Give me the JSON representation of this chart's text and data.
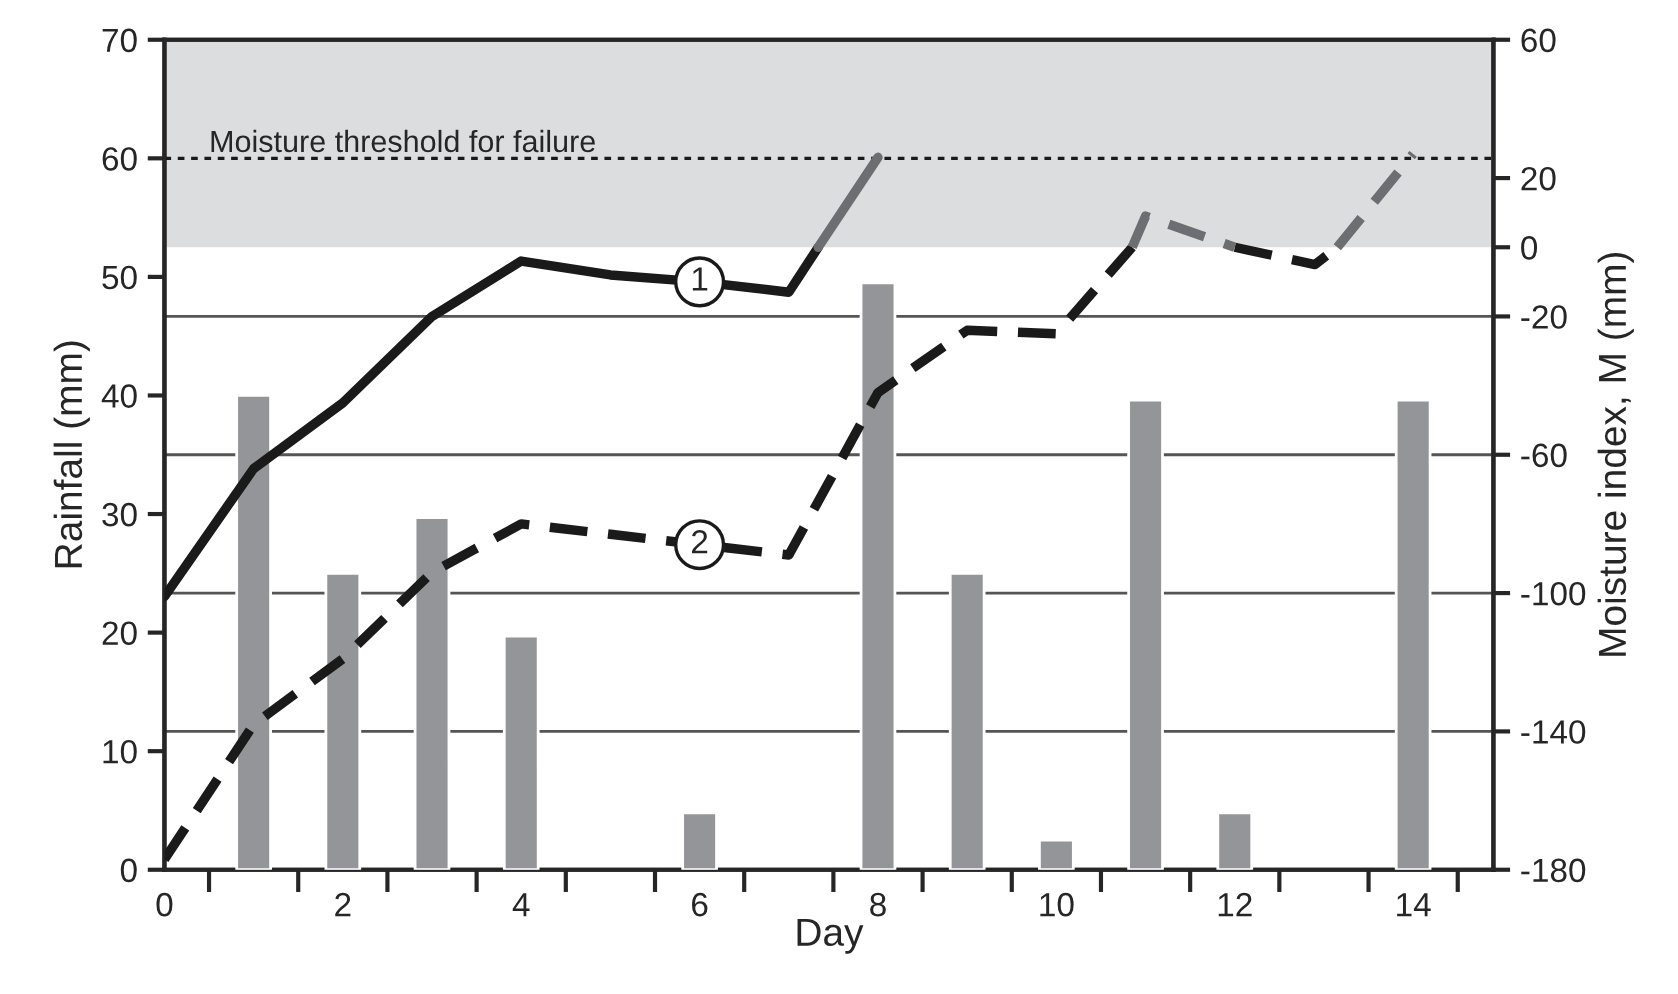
{
  "chart_data": {
    "type": "bar",
    "xlabel": "Day",
    "ylabel": "Rainfall (mm)",
    "y2label": "Moisture index, M (mm)",
    "x": [
      1,
      2,
      3,
      4,
      6,
      8,
      9,
      10,
      11,
      12,
      14
    ],
    "xlim": [
      0,
      14.9
    ],
    "xticks": [
      0,
      {
        "value": 0.5,
        "label": null
      },
      {
        "value": 1.5,
        "label": null
      },
      2,
      {
        "value": 2.5,
        "label": null
      },
      {
        "value": 3.5,
        "label": null
      },
      4,
      {
        "value": 4.5,
        "label": null
      },
      {
        "value": 5.5,
        "label": null
      },
      6,
      {
        "value": 6.5,
        "label": null
      },
      {
        "value": 7.5,
        "label": null
      },
      8,
      {
        "value": 8.5,
        "label": null
      },
      {
        "value": 9.5,
        "label": null
      },
      10,
      {
        "value": 10.5,
        "label": null
      },
      {
        "value": 11.5,
        "label": null
      },
      12,
      {
        "value": 12.5,
        "label": null
      },
      {
        "value": 13.5,
        "label": null
      },
      14,
      {
        "value": 14.5,
        "label": null
      }
    ],
    "ylim": [
      0,
      70
    ],
    "yticks": [
      0,
      10,
      20,
      30,
      40,
      50,
      60,
      70
    ],
    "y2lim": [
      -180,
      60
    ],
    "y2ticks": [
      -180,
      -140,
      -100,
      -60,
      -20,
      0,
      20,
      60
    ],
    "series": [
      {
        "color": "#939598",
        "values": [
          40,
          25,
          29.7,
          19.7,
          4.8,
          49.5,
          25,
          2.5,
          39.6,
          4.8,
          39.6
        ]
      },
      {
        "name": "1",
        "type": "line",
        "axis": "y2",
        "line_style": "solid",
        "color": "#1a1a1a",
        "x": [
          0,
          1,
          2,
          3,
          4,
          5,
          6,
          7,
          7.33
        ],
        "values": [
          -101,
          -64,
          -45,
          -20,
          -4,
          -8,
          -10,
          -13,
          0
        ]
      },
      {
        "type": "line",
        "axis": "y2",
        "line_style": "solid",
        "color": "#6d6e71",
        "x": [
          7.33,
          8
        ],
        "values": [
          0,
          26
        ]
      },
      {
        "name": "2",
        "type": "line",
        "axis": "y2",
        "line_style": "dashed",
        "color": "#1a1a1a",
        "x": [
          0,
          1,
          2,
          3,
          4,
          5,
          6,
          7,
          8,
          9,
          10,
          10.85,
          11,
          12,
          12.9,
          13.15
        ],
        "values": [
          -177,
          -138,
          -119,
          -94,
          -80,
          -83,
          -86,
          -89,
          -42,
          -24,
          -25,
          0,
          null,
          0,
          -5,
          0
        ]
      },
      {
        "type": "line",
        "axis": "y2",
        "line_style": "dashed",
        "color": "#6d6e71",
        "x": [
          10.85,
          11,
          12,
          12.5,
          13.15,
          14
        ],
        "values": [
          0,
          9,
          0,
          null,
          0,
          27
        ]
      }
    ],
    "bands": [
      {
        "axis": "y2",
        "from": 0,
        "to": 60,
        "color": "#dcdddf"
      }
    ],
    "ref_lines": [
      {
        "axis": "y",
        "value": 60,
        "label": "Moisture threshold for failure",
        "color": "#1a1a1a",
        "line_style": "dotted"
      },
      {
        "axis": "y2",
        "value": -20,
        "color": "#555555",
        "line_style": "solid"
      },
      {
        "axis": "y2",
        "value": -60,
        "color": "#555555",
        "line_style": "solid"
      },
      {
        "axis": "y2",
        "value": -100,
        "color": "#555555",
        "line_style": "solid"
      },
      {
        "axis": "y2",
        "value": -140,
        "color": "#555555",
        "line_style": "solid"
      }
    ]
  }
}
